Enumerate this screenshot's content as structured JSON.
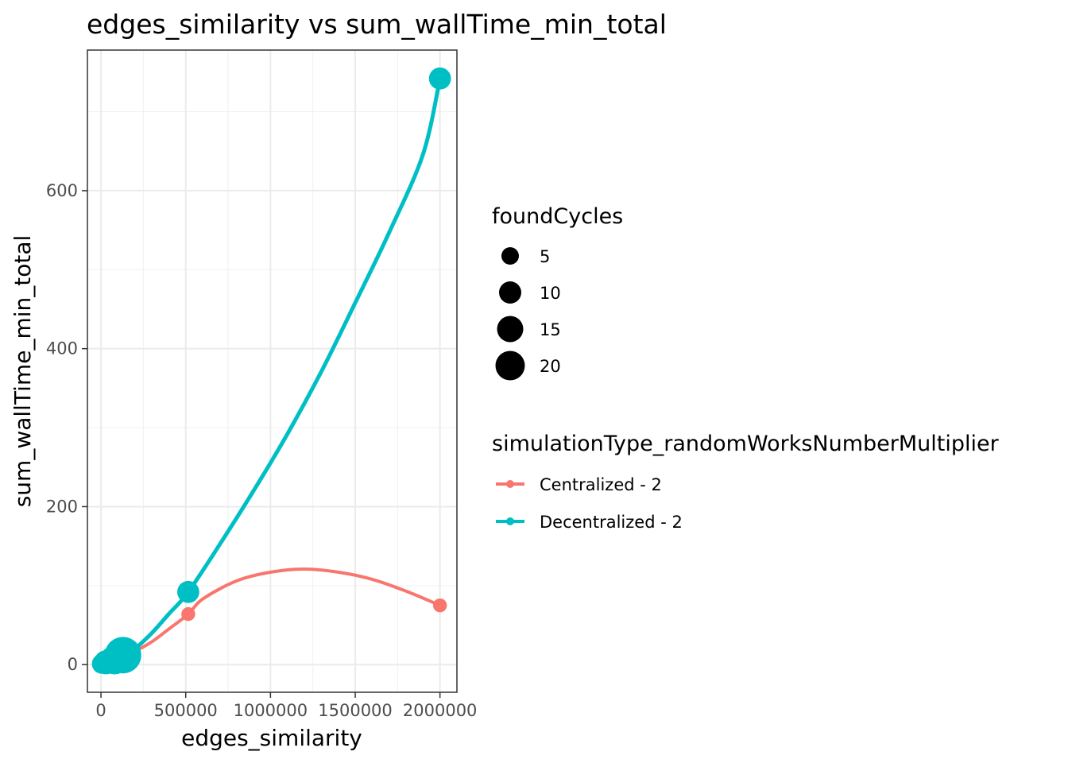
{
  "chart_data": {
    "type": "scatter",
    "title": "edges_similarity  vs  sum_wallTime_min_total",
    "xlabel": "edges_similarity",
    "ylabel": "sum_wallTime_min_total",
    "xlim": [
      -80000,
      2100000
    ],
    "ylim": [
      -35,
      778
    ],
    "x_ticks": [
      0,
      500000,
      1000000,
      1500000,
      2000000
    ],
    "x_tick_labels": [
      "0",
      "500000",
      "1000000",
      "1500000",
      "2000000"
    ],
    "y_ticks": [
      0,
      200,
      400,
      600
    ],
    "y_tick_labels": [
      "0",
      "200",
      "400",
      "600"
    ],
    "grid": true,
    "smooth": true,
    "legend_position": "right",
    "size_legend": {
      "title": "foundCycles",
      "entries": [
        {
          "label": "5",
          "value": 5
        },
        {
          "label": "10",
          "value": 10
        },
        {
          "label": "15",
          "value": 15
        },
        {
          "label": "20",
          "value": 20
        }
      ]
    },
    "color_legend": {
      "title": "simulationType_randomWorksNumberMultiplier"
    },
    "series": [
      {
        "name": "Centralized - 2",
        "color": "#F8766D",
        "points": [
          {
            "x": 5000,
            "y": 1,
            "size": 1
          },
          {
            "x": 20000,
            "y": 3,
            "size": 1
          },
          {
            "x": 60000,
            "y": 8,
            "size": 2
          },
          {
            "x": 140000,
            "y": 16,
            "size": 1
          },
          {
            "x": 515000,
            "y": 64,
            "size": 1
          },
          {
            "x": 2000000,
            "y": 75,
            "size": 1
          }
        ],
        "curve": [
          {
            "x": 0,
            "y": 2
          },
          {
            "x": 100000,
            "y": 10
          },
          {
            "x": 200000,
            "y": 17
          },
          {
            "x": 300000,
            "y": 29
          },
          {
            "x": 400000,
            "y": 45
          },
          {
            "x": 515000,
            "y": 64
          },
          {
            "x": 600000,
            "y": 83
          },
          {
            "x": 800000,
            "y": 106
          },
          {
            "x": 1000000,
            "y": 117
          },
          {
            "x": 1200000,
            "y": 121
          },
          {
            "x": 1400000,
            "y": 117
          },
          {
            "x": 1600000,
            "y": 108
          },
          {
            "x": 1800000,
            "y": 93
          },
          {
            "x": 2000000,
            "y": 75
          }
        ]
      },
      {
        "name": "Decentralized - 2",
        "color": "#00BFC4",
        "points": [
          {
            "x": 5000,
            "y": 1,
            "size": 3
          },
          {
            "x": 30000,
            "y": 3,
            "size": 5
          },
          {
            "x": 80000,
            "y": 6,
            "size": 8
          },
          {
            "x": 130000,
            "y": 12,
            "size": 14
          },
          {
            "x": 515000,
            "y": 92,
            "size": 4
          },
          {
            "x": 2000000,
            "y": 742,
            "size": 4
          }
        ],
        "curve": [
          {
            "x": 0,
            "y": 1
          },
          {
            "x": 100000,
            "y": 6
          },
          {
            "x": 200000,
            "y": 20
          },
          {
            "x": 300000,
            "y": 40
          },
          {
            "x": 400000,
            "y": 64
          },
          {
            "x": 515000,
            "y": 92
          },
          {
            "x": 700000,
            "y": 152
          },
          {
            "x": 900000,
            "y": 220
          },
          {
            "x": 1100000,
            "y": 292
          },
          {
            "x": 1300000,
            "y": 371
          },
          {
            "x": 1500000,
            "y": 458
          },
          {
            "x": 1700000,
            "y": 547
          },
          {
            "x": 1900000,
            "y": 646
          },
          {
            "x": 2000000,
            "y": 742
          }
        ]
      }
    ]
  }
}
